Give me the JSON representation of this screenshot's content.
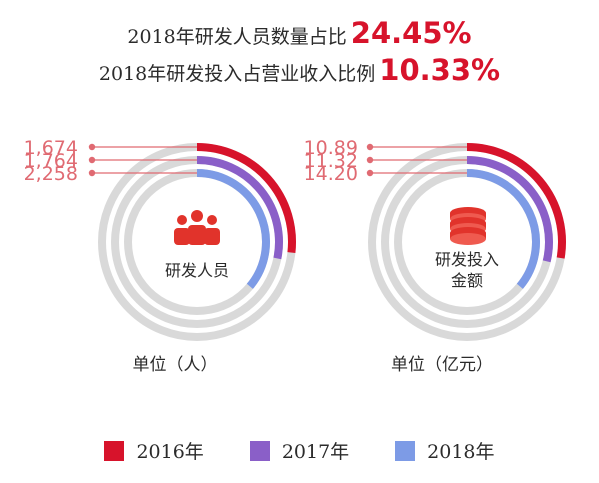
{
  "headline": {
    "line1_text": "2018年研发人员数量占比",
    "line1_value": "24.45%",
    "line2_text": "2018年研发投入占营业收入比例",
    "line2_value": "10.33%"
  },
  "colors": {
    "2016": "#d7132b",
    "2017": "#8a5fc8",
    "2018": "#7d9be6",
    "track": "#d9d9d9",
    "leader": "#e06a72"
  },
  "chart_data": [
    {
      "type": "radial-bar",
      "center_label": "研发人员",
      "center_icon": "people-icon",
      "unit": "单位（人）",
      "series": [
        {
          "name": "2016年",
          "value": 1674,
          "label": "1,674"
        },
        {
          "name": "2017年",
          "value": 1764,
          "label": "1,764"
        },
        {
          "name": "2018年",
          "value": 2258,
          "label": "2,258"
        }
      ]
    },
    {
      "type": "radial-bar",
      "center_label_lines": [
        "研发投入",
        "金额"
      ],
      "center_icon": "coins-icon",
      "unit": "单位（亿元）",
      "series": [
        {
          "name": "2016年",
          "value": 10.89,
          "label": "10.89"
        },
        {
          "name": "2017年",
          "value": 11.32,
          "label": "11.32"
        },
        {
          "name": "2018年",
          "value": 14.2,
          "label": "14.20"
        }
      ]
    }
  ],
  "legend": [
    {
      "label": "2016年",
      "color": "#d7132b"
    },
    {
      "label": "2017年",
      "color": "#8a5fc8"
    },
    {
      "label": "2018年",
      "color": "#7d9be6"
    }
  ]
}
